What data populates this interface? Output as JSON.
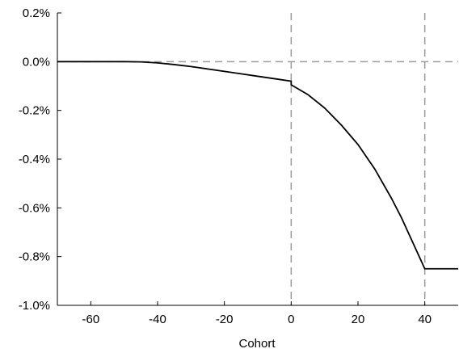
{
  "chart_data": {
    "type": "line",
    "title": "",
    "xlabel": "Cohort",
    "ylabel": "",
    "xlim": [
      -70,
      50
    ],
    "ylim": [
      -1.0,
      0.2
    ],
    "xticks": [
      -60,
      -40,
      -20,
      0,
      20,
      40
    ],
    "xtick_labels": [
      "-60",
      "-40",
      "-20",
      "0",
      "20",
      "40"
    ],
    "yticks": [
      0.2,
      0.0,
      -0.2,
      -0.4,
      -0.6,
      -0.8,
      -1.0
    ],
    "ytick_labels": [
      "0.2%",
      "0.0%",
      "-0.2%",
      "-0.4%",
      "-0.6%",
      "-0.8%",
      "-1.0%"
    ],
    "grid": false,
    "reference_lines": {
      "horizontal": [
        0.0
      ],
      "vertical": [
        0,
        40
      ]
    },
    "series": [
      {
        "x": [
          -70,
          -60,
          -50,
          -45,
          -40,
          -35,
          -30,
          -25,
          -20,
          -15,
          -10,
          -5,
          0,
          0,
          5,
          10,
          15,
          20,
          25,
          30,
          33,
          36,
          38,
          40,
          40,
          45,
          50
        ],
        "y": [
          0.0,
          0.0,
          0.0,
          -0.001,
          -0.005,
          -0.012,
          -0.02,
          -0.03,
          -0.04,
          -0.05,
          -0.06,
          -0.07,
          -0.08,
          -0.095,
          -0.135,
          -0.19,
          -0.26,
          -0.34,
          -0.44,
          -0.56,
          -0.64,
          -0.73,
          -0.79,
          -0.85,
          -0.85,
          -0.85,
          -0.85
        ]
      }
    ]
  }
}
